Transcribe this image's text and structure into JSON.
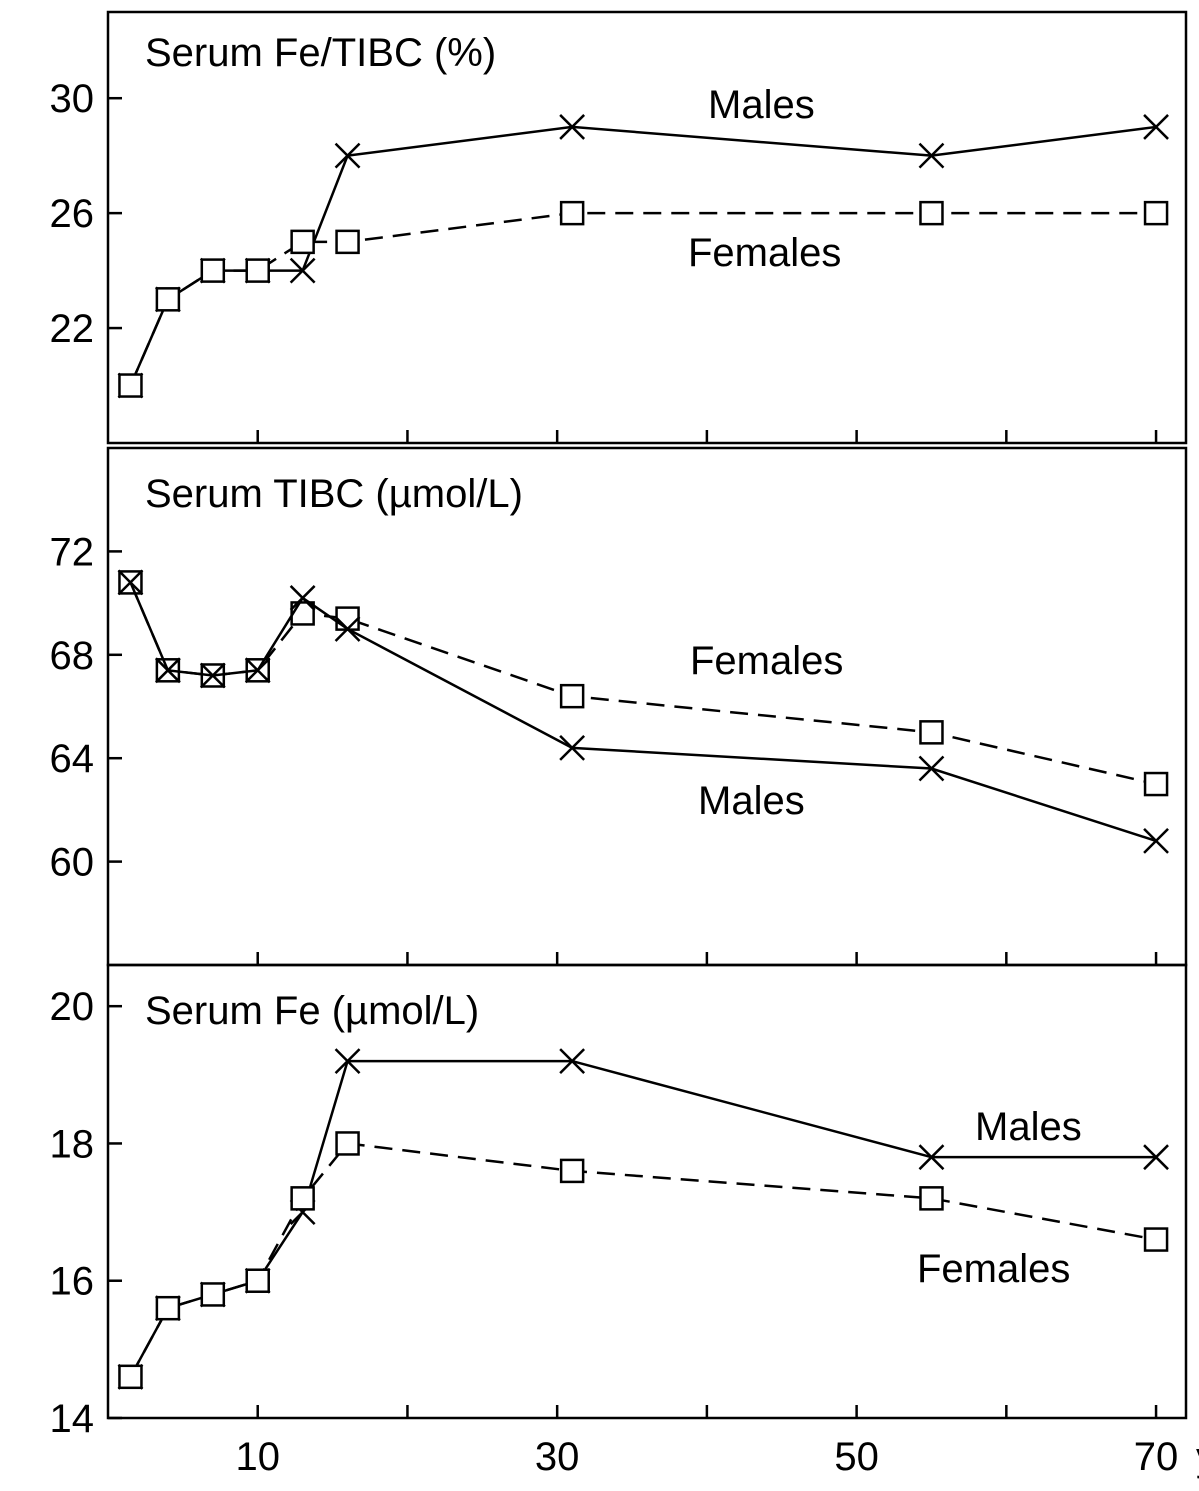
{
  "chart_data": [
    {
      "type": "line",
      "title": "Serum Fe/TIBC (%)",
      "ylim": [
        18,
        33
      ],
      "yticks": [
        22,
        26,
        30
      ],
      "xlim": [
        0,
        72
      ],
      "x": [
        1.5,
        4,
        7,
        10,
        13,
        16,
        31,
        55,
        70
      ],
      "series": [
        {
          "name": "Males",
          "style": "solid",
          "marker": "x",
          "values": [
            20,
            23,
            24,
            24,
            24,
            28,
            29,
            28,
            29
          ]
        },
        {
          "name": "Females",
          "style": "dashed",
          "marker": "square",
          "values": [
            20,
            23,
            24,
            24,
            25,
            25,
            26,
            26,
            26
          ]
        }
      ]
    },
    {
      "type": "line",
      "title": "Serum TIBC (µmol/L)",
      "ylim": [
        56,
        76
      ],
      "yticks": [
        60,
        64,
        68,
        72
      ],
      "xlim": [
        0,
        72
      ],
      "x": [
        1.5,
        4,
        7,
        10,
        13,
        16,
        31,
        55,
        70
      ],
      "series": [
        {
          "name": "Females",
          "style": "dashed",
          "marker": "square",
          "values": [
            70.8,
            67.4,
            67.2,
            67.4,
            69.6,
            69.4,
            66.4,
            65.0,
            63.0
          ]
        },
        {
          "name": "Males",
          "style": "solid",
          "marker": "x",
          "values": [
            70.8,
            67.4,
            67.2,
            67.4,
            70.2,
            69.0,
            64.4,
            63.6,
            60.8
          ]
        }
      ]
    },
    {
      "type": "line",
      "title": "Serum Fe (µmol/L)",
      "ylim": [
        14,
        20.6
      ],
      "yticks": [
        14,
        16,
        18,
        20
      ],
      "xlim": [
        0,
        72
      ],
      "xticks": [
        10,
        30,
        50,
        70
      ],
      "xticklabels": [
        "10",
        "30",
        "50",
        "70"
      ],
      "xunit": "y",
      "minor_xticks": [
        20,
        40,
        60
      ],
      "x": [
        1.5,
        4,
        7,
        10,
        13,
        16,
        31,
        55,
        70
      ],
      "series": [
        {
          "name": "Males",
          "style": "solid",
          "marker": "x",
          "values": [
            14.6,
            15.6,
            15.8,
            16.0,
            17.0,
            19.2,
            19.2,
            17.8,
            17.8
          ]
        },
        {
          "name": "Females",
          "style": "dashed",
          "marker": "square",
          "values": [
            14.6,
            15.6,
            15.8,
            16.0,
            17.2,
            18.0,
            17.6,
            17.2,
            16.6
          ]
        }
      ]
    }
  ]
}
